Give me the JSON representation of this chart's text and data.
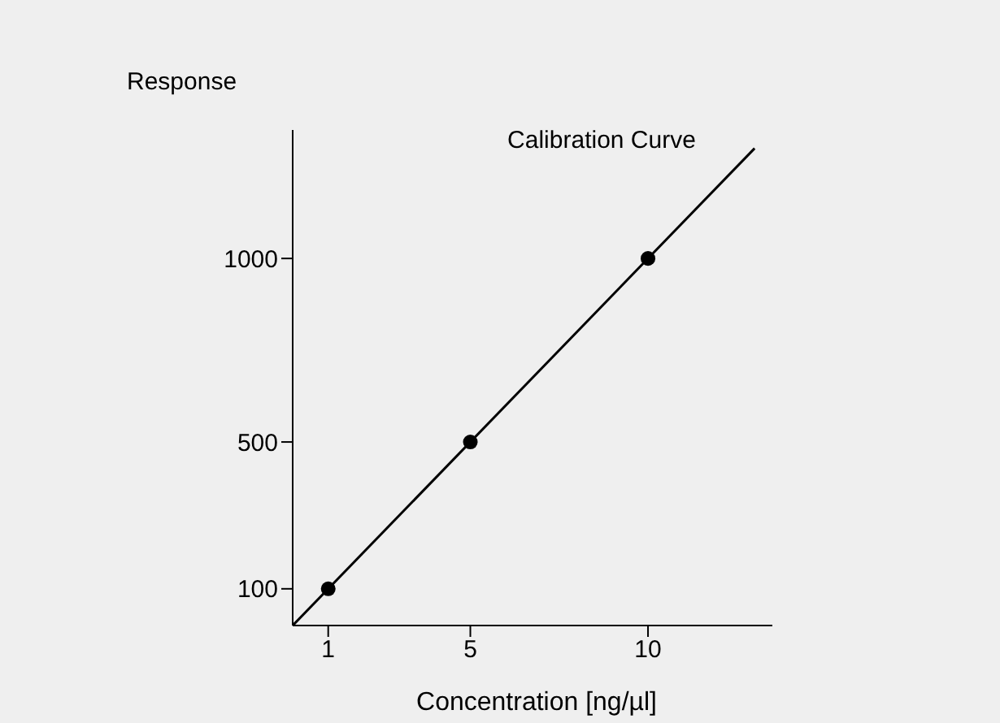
{
  "chart_data": {
    "type": "scatter",
    "title": "Calibration Curve",
    "xlabel": "Concentration [ng/µl]",
    "ylabel": "Response",
    "marker": "circle",
    "xlim": [
      0,
      13.5
    ],
    "ylim": [
      0,
      1350
    ],
    "xticks": [
      1,
      5,
      10
    ],
    "yticks": [
      100,
      500,
      1000
    ],
    "series": [
      {
        "color": "#000000",
        "x": [
          1,
          5,
          10
        ],
        "values": [
          100,
          500,
          1000
        ]
      },
      {
        "type": "line",
        "color": "#000000",
        "marker": "none",
        "x": [
          0,
          13
        ],
        "values": [
          0,
          1300
        ]
      }
    ]
  }
}
